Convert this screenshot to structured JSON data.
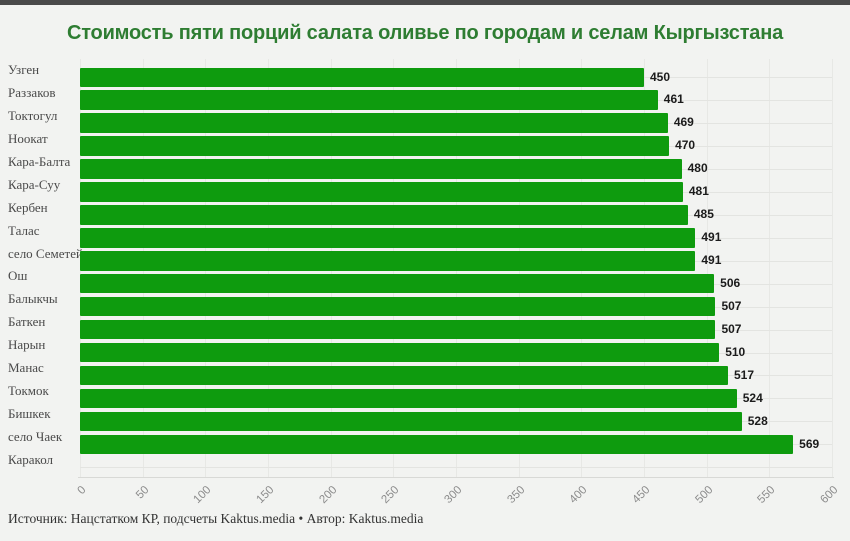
{
  "header": {
    "title": "Стоимость пяти порций салата оливье по городам и селам Кыргызстана"
  },
  "footer": {
    "source": "Источник: Нацстатком КР, подсчеты Kaktus.media • Автор: Kaktus.media"
  },
  "colors": {
    "background": "#f2f3f1",
    "top_strip": "#4a4a4a",
    "title": "#2e7d32",
    "bar": "#0e9b0e",
    "category_label": "#4a4a4a",
    "value_label": "#1b1b1b",
    "tick_label": "#8c8c8c",
    "hgrid": "#e3e4e1",
    "vgrid": "#e7e8e5",
    "axis_line": "#d8d9d6",
    "footer_text": "#333333"
  },
  "chart_data": {
    "type": "bar",
    "orientation": "horizontal",
    "title": "Стоимость пяти порций салата оливье по городам и селам Кыргызстана",
    "categories": [
      "Узген",
      "Раззаков",
      "Токтогул",
      "Ноокат",
      "Кара-Балта",
      "Кара-Суу",
      "Кербен",
      "Талас",
      "село Семетей",
      "Ош",
      "Балыкчы",
      "Баткен",
      "Нарын",
      "Манас",
      "Токмок",
      "Бишкек",
      "село Чаек",
      "Каракол"
    ],
    "values": [
      450,
      461,
      469,
      470,
      480,
      481,
      485,
      491,
      491,
      506,
      507,
      507,
      510,
      517,
      524,
      528,
      569,
      null
    ],
    "value_labels": true,
    "xlabel": "",
    "ylabel": "",
    "xlim": [
      0,
      600
    ],
    "x_ticks": [
      0,
      50,
      100,
      150,
      200,
      250,
      300,
      350,
      400,
      450,
      500,
      550,
      600
    ],
    "grid": true,
    "legend": false,
    "source": "Источник: Нацстатком КР, подсчеты Kaktus.media • Автор: Kaktus.media"
  }
}
